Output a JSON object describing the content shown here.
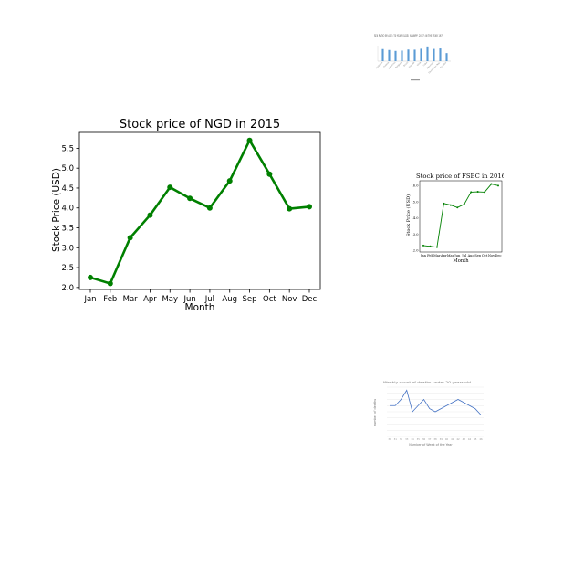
{
  "chart_data": [
    {
      "type": "line",
      "title": "Stock price of NGD in 2015",
      "xlabel": "Month",
      "ylabel": "Stock Price (USD)",
      "categories": [
        "Jan",
        "Feb",
        "Mar",
        "Apr",
        "May",
        "Jun",
        "Jul",
        "Aug",
        "Sep",
        "Oct",
        "Nov",
        "Dec"
      ],
      "series": [
        {
          "values": [
            2.25,
            2.1,
            3.25,
            3.82,
            4.52,
            4.24,
            4.0,
            4.68,
            5.7,
            4.85,
            3.98,
            4.03
          ]
        }
      ],
      "yticks": [
        "2.0",
        "2.5",
        "3.0",
        "3.5",
        "4.0",
        "4.5",
        "5.0",
        "5.5"
      ],
      "ylim": [
        1.95,
        5.9
      ],
      "grid": false,
      "color": "#008000",
      "markers": true
    },
    {
      "type": "bar",
      "title": "SEX RATIO BY AGE (70 YEAR OLDS) (UNWPP, 2017) IN THE YEAR 1975",
      "categories": [
        "Australia",
        "Austria",
        "Bahamas",
        "Belgium",
        "Brazil",
        "Canada",
        "Chile",
        "Cuba",
        "Denmark",
        "Dominican Rep.",
        "Ecuador"
      ],
      "values": [
        0.78,
        0.72,
        0.66,
        0.68,
        0.75,
        0.74,
        0.8,
        0.95,
        0.79,
        0.82,
        0.52
      ],
      "ylim": [
        0,
        1.0
      ],
      "color": "#5b9bd5"
    },
    {
      "type": "line",
      "title": "Stock price of FSBC in 2016",
      "xlabel": "Month",
      "ylabel": "Stock Price (USD)",
      "categories": [
        "Jan",
        "Feb",
        "Mar",
        "Apr",
        "May",
        "Jun",
        "Jul",
        "Aug",
        "Sep",
        "Oct",
        "Nov",
        "Dec"
      ],
      "series": [
        {
          "values": [
            12.3,
            12.25,
            12.2,
            14.9,
            14.8,
            14.65,
            14.85,
            15.6,
            15.62,
            15.6,
            16.1,
            16.0
          ]
        }
      ],
      "yticks": [
        "12.0",
        "13.0",
        "14.0",
        "15.0",
        "16.0"
      ],
      "ylim": [
        11.9,
        16.3
      ],
      "color": "#008000"
    },
    {
      "type": "line",
      "title": "Weekly count of deaths under 20 years old",
      "xlabel": "Number of Week of the Year",
      "ylabel": "number of deaths",
      "categories": [
        "30",
        "31",
        "32",
        "33",
        "34",
        "35",
        "36",
        "37",
        "38",
        "39",
        "40",
        "41",
        "42",
        "43",
        "44",
        "45",
        "46"
      ],
      "series": [
        {
          "values": [
            10,
            10,
            12,
            15,
            8,
            10,
            12,
            9,
            8,
            9,
            10,
            11,
            12,
            11,
            10,
            9,
            7
          ]
        }
      ],
      "ylim": [
        0,
        16
      ],
      "color": "#4472c4"
    }
  ]
}
